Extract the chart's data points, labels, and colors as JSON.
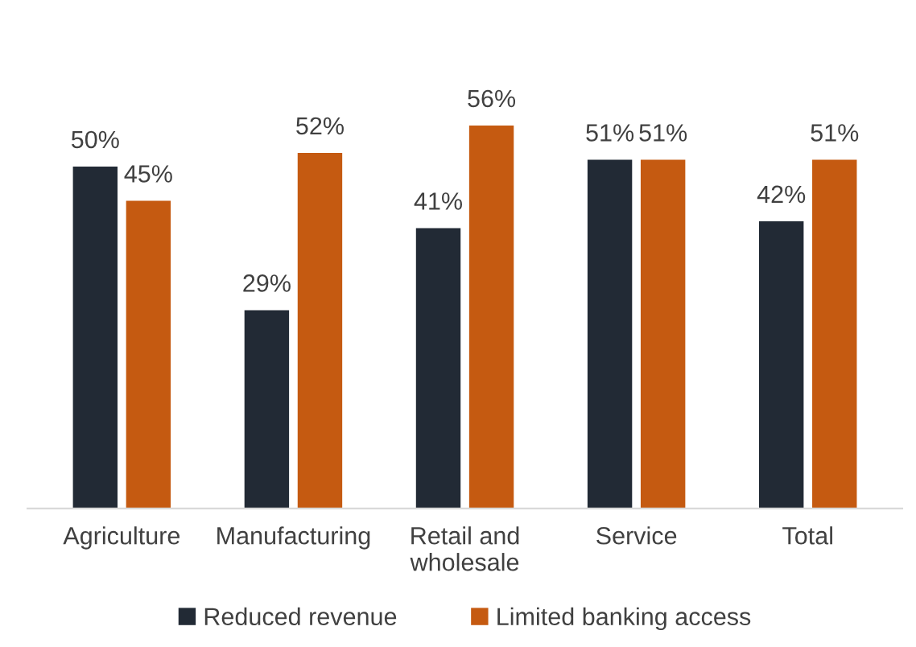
{
  "chart_data": {
    "type": "bar",
    "categories": [
      "Agriculture",
      "Manufacturing",
      "Retail and\nwholesale",
      "Service",
      "Total"
    ],
    "series": [
      {
        "name": "Reduced revenue",
        "color": "#222a35",
        "values": [
          50,
          29,
          41,
          51,
          42
        ],
        "value_labels": [
          "50%",
          "29%",
          "41%",
          "51%",
          "42%"
        ]
      },
      {
        "name": "Limited banking access",
        "color": "#c55a11",
        "values": [
          45,
          52,
          56,
          51,
          51
        ],
        "value_labels": [
          "45%",
          "52%",
          "56%",
          "51%",
          "51%"
        ]
      }
    ],
    "legend": "bottom",
    "grid": false
  }
}
